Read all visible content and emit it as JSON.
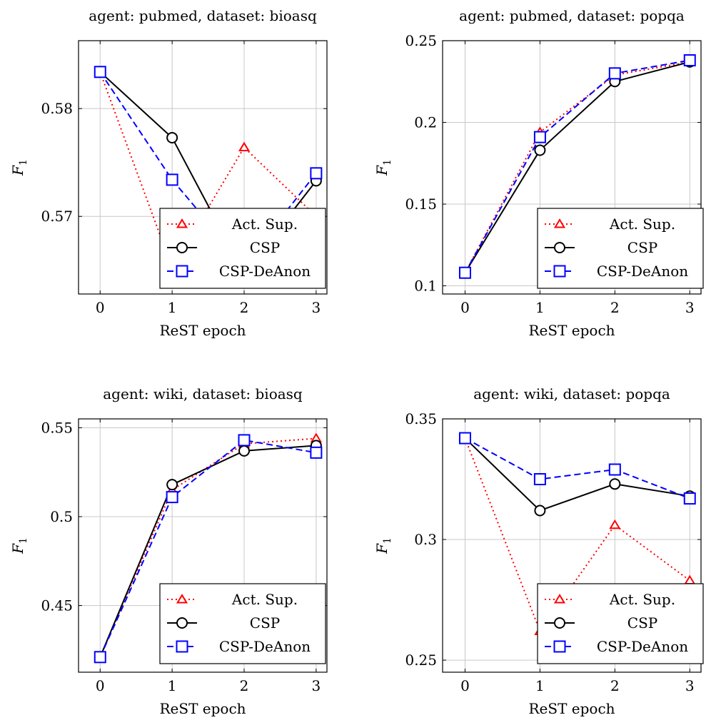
{
  "chart_data": [
    {
      "type": "line",
      "title": "agent: pubmed, dataset: bioasq",
      "xlabel": "ReST epoch",
      "ylabel": "F1",
      "x": [
        0,
        1,
        2,
        3
      ],
      "xticks": [
        "0",
        "1",
        "2",
        "3"
      ],
      "ylim": [
        0.5628,
        0.5863
      ],
      "yticks": [
        0.57,
        0.58
      ],
      "ytick_labels": [
        "0.57",
        "0.58"
      ],
      "grid": true,
      "legend_position": "bottom-right",
      "series": [
        {
          "name": "Act. Sup.",
          "color": "#ff0000",
          "marker": "triangle",
          "dash": "dotted",
          "values": [
            0.5834,
            0.5652,
            0.5764,
            0.57
          ]
        },
        {
          "name": "CSP",
          "color": "#000000",
          "marker": "circle",
          "dash": "solid",
          "values": [
            0.5834,
            0.5773,
            0.5647,
            0.5733
          ]
        },
        {
          "name": "CSP-DeAnon",
          "color": "#0000ff",
          "marker": "square",
          "dash": "dashed",
          "values": [
            0.5834,
            0.5734,
            0.5655,
            0.574
          ]
        }
      ]
    },
    {
      "type": "line",
      "title": "agent: pubmed, dataset: popqa",
      "xlabel": "ReST epoch",
      "ylabel": "F1",
      "x": [
        0,
        1,
        2,
        3
      ],
      "xticks": [
        "0",
        "1",
        "2",
        "3"
      ],
      "ylim": [
        0.095,
        0.25
      ],
      "yticks": [
        0.1,
        0.15,
        0.2,
        0.25
      ],
      "ytick_labels": [
        "0.1",
        "0.15",
        "0.2",
        "0.25"
      ],
      "grid": true,
      "legend_position": "bottom-right",
      "series": [
        {
          "name": "Act. Sup.",
          "color": "#ff0000",
          "marker": "triangle",
          "dash": "dotted",
          "values": [
            0.108,
            0.194,
            0.229,
            0.237
          ]
        },
        {
          "name": "CSP",
          "color": "#000000",
          "marker": "circle",
          "dash": "solid",
          "values": [
            0.108,
            0.183,
            0.225,
            0.237
          ]
        },
        {
          "name": "CSP-DeAnon",
          "color": "#0000ff",
          "marker": "square",
          "dash": "dashed",
          "values": [
            0.108,
            0.191,
            0.23,
            0.238
          ]
        }
      ]
    },
    {
      "type": "line",
      "title": "agent: wiki, dataset: bioasq",
      "xlabel": "ReST epoch",
      "ylabel": "F1",
      "x": [
        0,
        1,
        2,
        3
      ],
      "xticks": [
        "0",
        "1",
        "2",
        "3"
      ],
      "ylim": [
        0.4125,
        0.555
      ],
      "yticks": [
        0.45,
        0.5,
        0.55
      ],
      "ytick_labels": [
        "0.45",
        "0.5",
        "0.55"
      ],
      "grid": true,
      "legend_position": "bottom-right",
      "series": [
        {
          "name": "Act. Sup.",
          "color": "#ff0000",
          "marker": "triangle",
          "dash": "dotted",
          "values": [
            0.421,
            0.515,
            0.541,
            0.544
          ]
        },
        {
          "name": "CSP",
          "color": "#000000",
          "marker": "circle",
          "dash": "solid",
          "values": [
            0.421,
            0.518,
            0.537,
            0.54
          ]
        },
        {
          "name": "CSP-DeAnon",
          "color": "#0000ff",
          "marker": "square",
          "dash": "dashed",
          "values": [
            0.421,
            0.511,
            0.543,
            0.536
          ]
        }
      ]
    },
    {
      "type": "line",
      "title": "agent: wiki, dataset: popqa",
      "xlabel": "ReST epoch",
      "ylabel": "F1",
      "x": [
        0,
        1,
        2,
        3
      ],
      "xticks": [
        "0",
        "1",
        "2",
        "3"
      ],
      "ylim": [
        0.245,
        0.35
      ],
      "yticks": [
        0.25,
        0.3,
        0.35
      ],
      "ytick_labels": [
        "0.25",
        "0.3",
        "0.35"
      ],
      "grid": true,
      "legend_position": "bottom-right",
      "series": [
        {
          "name": "Act. Sup.",
          "color": "#ff0000",
          "marker": "triangle",
          "dash": "dotted",
          "values": [
            0.342,
            0.262,
            0.306,
            0.283
          ]
        },
        {
          "name": "CSP",
          "color": "#000000",
          "marker": "circle",
          "dash": "solid",
          "values": [
            0.342,
            0.312,
            0.323,
            0.318
          ]
        },
        {
          "name": "CSP-DeAnon",
          "color": "#0000ff",
          "marker": "square",
          "dash": "dashed",
          "values": [
            0.342,
            0.325,
            0.329,
            0.317
          ]
        }
      ]
    }
  ]
}
